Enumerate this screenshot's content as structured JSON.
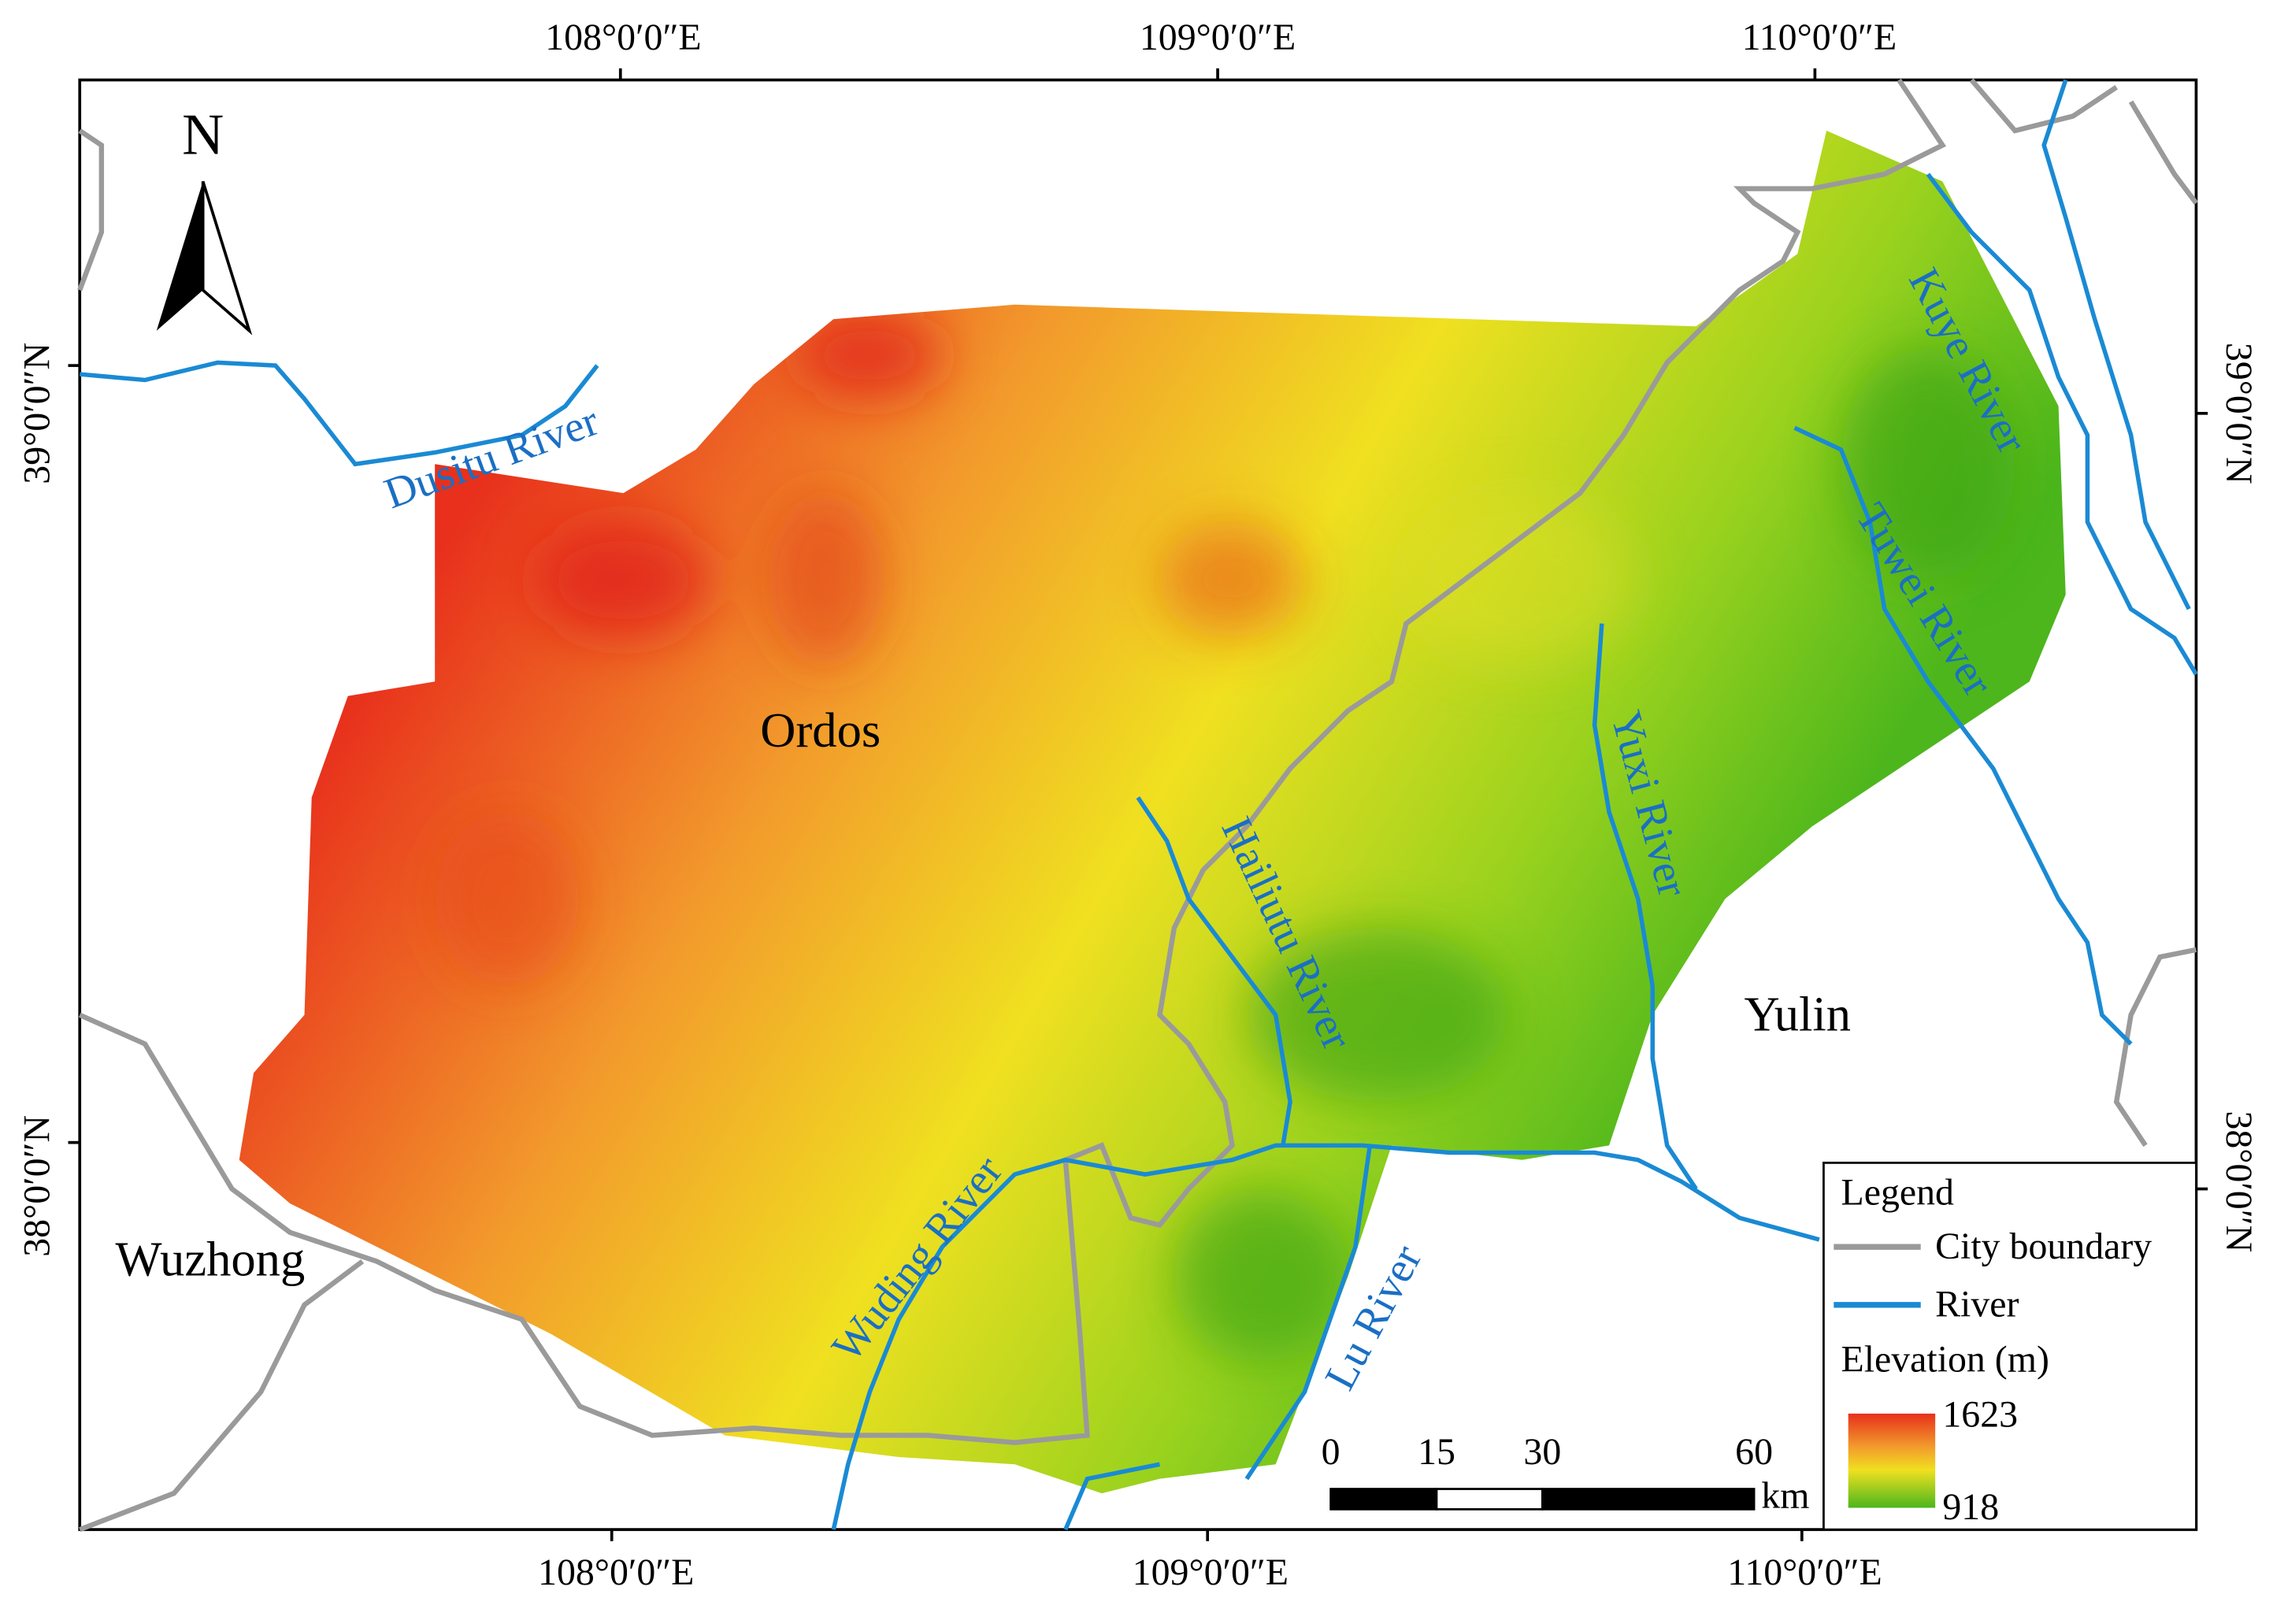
{
  "north": "N",
  "graticule": {
    "top": [
      "108°0′0″E",
      "109°0′0″E",
      "110°0′0″E"
    ],
    "bottom": [
      "108°0′0″E",
      "109°0′0″E",
      "110°0′0″E"
    ],
    "left": [
      "39°0′0″N",
      "38°0′0″N"
    ],
    "right": [
      "39°0′0″N",
      "38°0′0″N"
    ]
  },
  "places": [
    "Ordos",
    "Yulin",
    "Wuzhong"
  ],
  "rivers": [
    "Dusitu River",
    "Hailiutu River",
    "Yuxi River",
    "Kuye River",
    "Tuwei River",
    "Wuding River",
    "Lu River"
  ],
  "legend": {
    "title": "Legend",
    "items": [
      "City boundary",
      "River"
    ],
    "elevation_title": "Elevation (m)",
    "elevation_max": 1623,
    "elevation_min": 918
  },
  "scale_bar": {
    "ticks": [
      0,
      15,
      30,
      60
    ],
    "unit": "km"
  }
}
